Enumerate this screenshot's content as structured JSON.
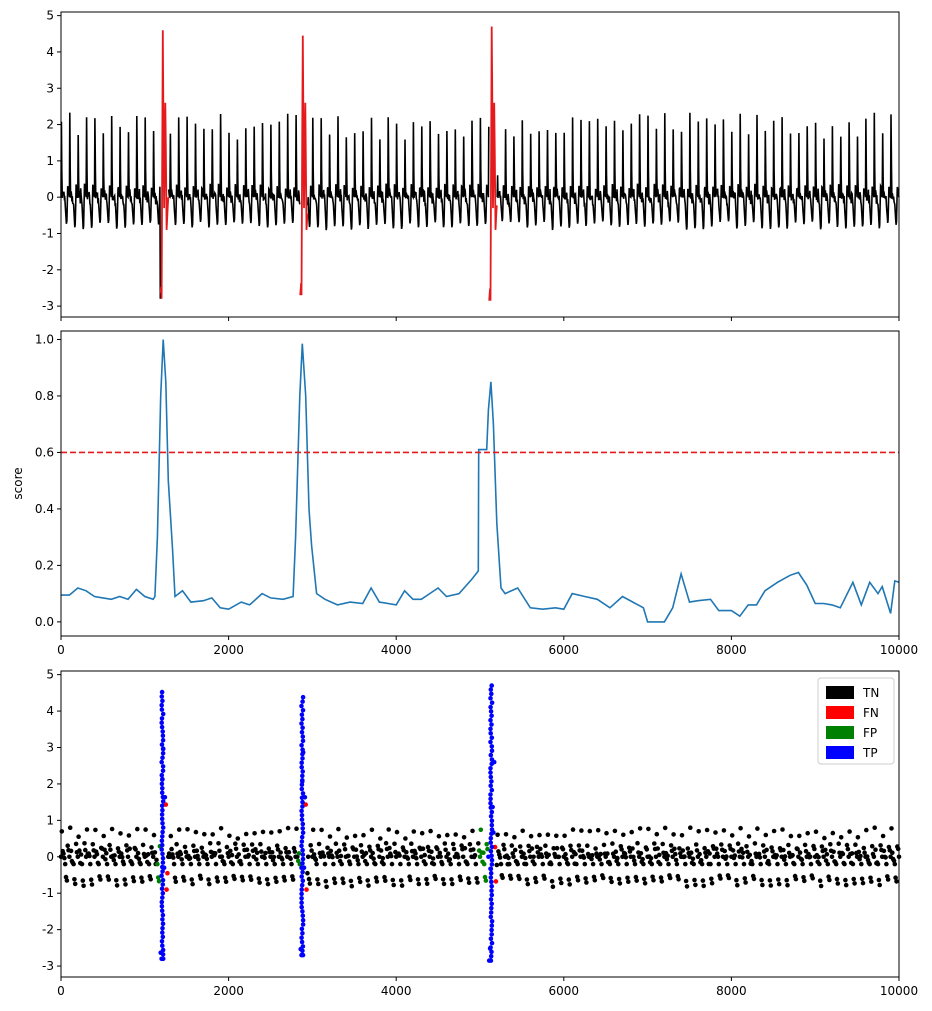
{
  "chart_data": [
    {
      "type": "line",
      "title": "",
      "xlabel": "",
      "ylabel": "",
      "xlim": [
        0,
        10000
      ],
      "ylim": [
        -3.3,
        5.1
      ],
      "yticks": [
        "-3",
        "-2",
        "-1",
        "0",
        "1",
        "2",
        "3",
        "4",
        "5"
      ],
      "xticks_labels_shown": false,
      "series": [
        {
          "color": "#000000",
          "description_kind": "signal",
          "segments": [
            [
              0,
              10000
            ]
          ]
        },
        {
          "color": "#e41a1c",
          "description_kind": "anomaly",
          "segments": [
            [
              1190,
              1280
            ],
            [
              2855,
              2940
            ],
            [
              5110,
              5200
            ]
          ]
        }
      ],
      "beats": {
        "period": 100,
        "r_peak_range": [
          1.9,
          2.8
        ],
        "baseline_range": [
          -1.0,
          0.5
        ]
      },
      "anomalies": [
        {
          "x": 1190,
          "min": -2.8,
          "max": 4.6
        },
        {
          "x": 2860,
          "min": -2.7,
          "max": 4.45
        },
        {
          "x": 5115,
          "min": -2.85,
          "max": 4.7
        }
      ]
    },
    {
      "type": "line",
      "title": "",
      "xlabel": "",
      "ylabel": "score",
      "xlim": [
        0,
        10000
      ],
      "ylim": [
        -0.05,
        1.03
      ],
      "yticks": [
        "0.0",
        "0.2",
        "0.4",
        "0.6",
        "0.8",
        "1.0"
      ],
      "xticks": [
        "0",
        "2000",
        "4000",
        "6000",
        "8000",
        "10000"
      ],
      "threshold": {
        "y": 0.6,
        "color": "#e41a1c",
        "style": "dashed"
      },
      "series": [
        {
          "color": "#1f77b4",
          "points": [
            [
              0,
              0.095
            ],
            [
              100,
              0.095
            ],
            [
              200,
              0.12
            ],
            [
              300,
              0.11
            ],
            [
              400,
              0.09
            ],
            [
              500,
              0.085
            ],
            [
              600,
              0.08
            ],
            [
              700,
              0.09
            ],
            [
              800,
              0.08
            ],
            [
              900,
              0.115
            ],
            [
              1000,
              0.09
            ],
            [
              1100,
              0.08
            ],
            [
              1120,
              0.09
            ],
            [
              1150,
              0.3
            ],
            [
              1190,
              0.8
            ],
            [
              1220,
              1.0
            ],
            [
              1250,
              0.85
            ],
            [
              1280,
              0.5
            ],
            [
              1330,
              0.26
            ],
            [
              1360,
              0.09
            ],
            [
              1450,
              0.11
            ],
            [
              1550,
              0.07
            ],
            [
              1700,
              0.075
            ],
            [
              1800,
              0.085
            ],
            [
              1900,
              0.05
            ],
            [
              2000,
              0.045
            ],
            [
              2150,
              0.07
            ],
            [
              2250,
              0.06
            ],
            [
              2400,
              0.1
            ],
            [
              2500,
              0.085
            ],
            [
              2650,
              0.08
            ],
            [
              2770,
              0.09
            ],
            [
              2800,
              0.3
            ],
            [
              2850,
              0.8
            ],
            [
              2880,
              0.985
            ],
            [
              2920,
              0.8
            ],
            [
              2960,
              0.4
            ],
            [
              2990,
              0.27
            ],
            [
              3050,
              0.1
            ],
            [
              3150,
              0.08
            ],
            [
              3300,
              0.06
            ],
            [
              3450,
              0.07
            ],
            [
              3600,
              0.065
            ],
            [
              3700,
              0.12
            ],
            [
              3800,
              0.07
            ],
            [
              4000,
              0.06
            ],
            [
              4100,
              0.11
            ],
            [
              4200,
              0.08
            ],
            [
              4300,
              0.08
            ],
            [
              4400,
              0.1
            ],
            [
              4500,
              0.12
            ],
            [
              4600,
              0.09
            ],
            [
              4750,
              0.1
            ],
            [
              4900,
              0.15
            ],
            [
              4980,
              0.18
            ],
            [
              4985,
              0.61
            ],
            [
              5080,
              0.61
            ],
            [
              5100,
              0.75
            ],
            [
              5130,
              0.85
            ],
            [
              5160,
              0.7
            ],
            [
              5200,
              0.35
            ],
            [
              5250,
              0.12
            ],
            [
              5300,
              0.1
            ],
            [
              5450,
              0.12
            ],
            [
              5600,
              0.05
            ],
            [
              5750,
              0.045
            ],
            [
              5900,
              0.05
            ],
            [
              6000,
              0.045
            ],
            [
              6100,
              0.1
            ],
            [
              6250,
              0.09
            ],
            [
              6400,
              0.08
            ],
            [
              6550,
              0.05
            ],
            [
              6700,
              0.09
            ],
            [
              6950,
              0.05
            ],
            [
              7000,
              0.0
            ],
            [
              7200,
              0.0
            ],
            [
              7300,
              0.05
            ],
            [
              7400,
              0.17
            ],
            [
              7500,
              0.07
            ],
            [
              7600,
              0.075
            ],
            [
              7750,
              0.08
            ],
            [
              7850,
              0.04
            ],
            [
              8000,
              0.04
            ],
            [
              8100,
              0.02
            ],
            [
              8200,
              0.06
            ],
            [
              8300,
              0.06
            ],
            [
              8400,
              0.11
            ],
            [
              8550,
              0.14
            ],
            [
              8700,
              0.165
            ],
            [
              8800,
              0.175
            ],
            [
              8900,
              0.13
            ],
            [
              9000,
              0.065
            ],
            [
              9100,
              0.065
            ],
            [
              9200,
              0.06
            ],
            [
              9300,
              0.05
            ],
            [
              9450,
              0.14
            ],
            [
              9550,
              0.06
            ],
            [
              9650,
              0.14
            ],
            [
              9750,
              0.1
            ],
            [
              9800,
              0.125
            ],
            [
              9900,
              0.03
            ],
            [
              9950,
              0.145
            ],
            [
              10000,
              0.14
            ]
          ]
        }
      ]
    },
    {
      "type": "scatter",
      "title": "",
      "xlabel": "",
      "ylabel": "",
      "xlim": [
        0,
        10000
      ],
      "ylim": [
        -3.3,
        5.1
      ],
      "yticks": [
        "-3",
        "-2",
        "-1",
        "0",
        "1",
        "2",
        "3",
        "4",
        "5"
      ],
      "xticks": [
        "0",
        "2000",
        "4000",
        "6000",
        "8000",
        "10000"
      ],
      "legend": {
        "position": "top-right",
        "entries": [
          {
            "label": "TN",
            "color": "#000000"
          },
          {
            "label": "FN",
            "color": "#ff0000"
          },
          {
            "label": "FP",
            "color": "#008000"
          },
          {
            "label": "TP",
            "color": "#0000ff"
          }
        ]
      },
      "regions": [
        {
          "class": "FP",
          "x": [
            1150,
            1190
          ]
        },
        {
          "class": "TP",
          "x": [
            1190,
            1250
          ]
        },
        {
          "class": "FN",
          "x": [
            1250,
            1280
          ]
        },
        {
          "class": "FP",
          "x": [
            2830,
            2860
          ]
        },
        {
          "class": "TP",
          "x": [
            2860,
            2920
          ]
        },
        {
          "class": "FN",
          "x": [
            2920,
            2940
          ]
        },
        {
          "class": "FP",
          "x": [
            4990,
            5100
          ]
        },
        {
          "class": "TP",
          "x": [
            5100,
            5180
          ]
        },
        {
          "class": "FN",
          "x": [
            5180,
            5200
          ]
        }
      ]
    }
  ]
}
